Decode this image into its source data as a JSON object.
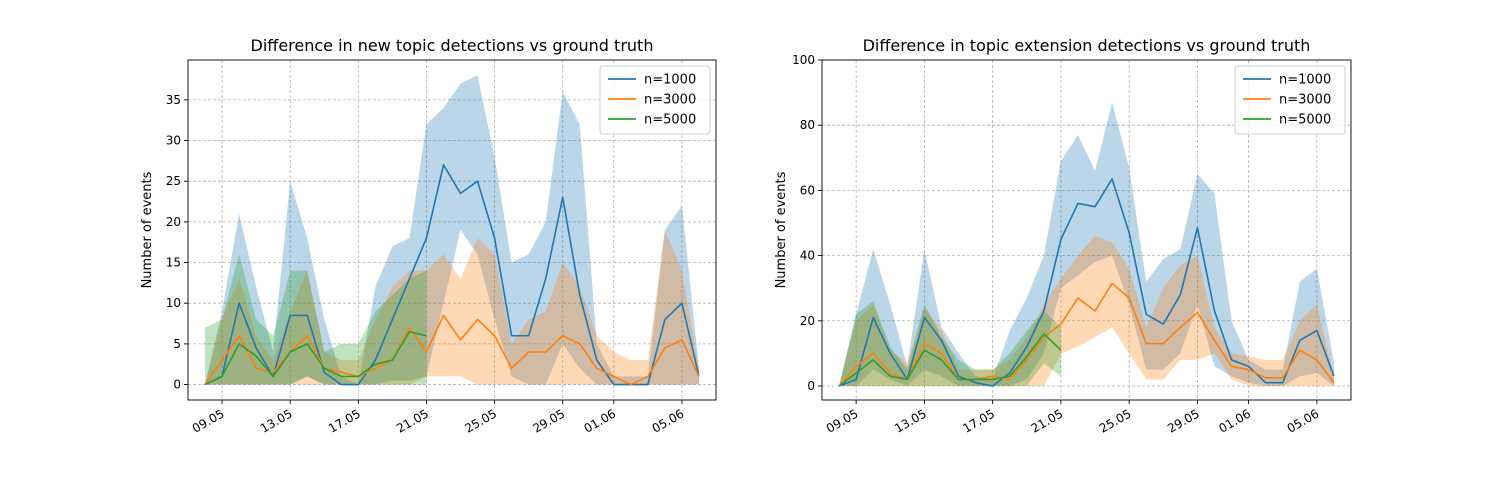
{
  "colors": {
    "n1000": "#1f77b4",
    "n3000": "#ff7f0e",
    "n5000": "#2ca02c"
  },
  "chart_data": [
    {
      "type": "line",
      "title": "Difference in new topic detections vs ground truth",
      "ylabel": "Number of events",
      "xlabel": "",
      "x_dates": [
        "2024-05-08",
        "2024-05-09",
        "2024-05-10",
        "2024-05-11",
        "2024-05-12",
        "2024-05-13",
        "2024-05-14",
        "2024-05-15",
        "2024-05-16",
        "2024-05-17",
        "2024-05-18",
        "2024-05-19",
        "2024-05-20",
        "2024-05-21",
        "2024-05-22",
        "2024-05-23",
        "2024-05-24",
        "2024-05-25",
        "2024-05-26",
        "2024-05-27",
        "2024-05-28",
        "2024-05-29",
        "2024-05-30",
        "2024-05-31",
        "2024-06-01",
        "2024-06-02",
        "2024-06-03",
        "2024-06-04",
        "2024-06-05",
        "2024-06-06"
      ],
      "xtick_labels": [
        "09.05",
        "13.05",
        "17.05",
        "21.05",
        "25.05",
        "29.05",
        "01.06",
        "05.06"
      ],
      "xtick_dates": [
        "2024-05-09",
        "2024-05-13",
        "2024-05-17",
        "2024-05-21",
        "2024-05-25",
        "2024-05-29",
        "2024-06-01",
        "2024-06-05"
      ],
      "yticks": [
        0,
        5,
        10,
        15,
        20,
        25,
        30,
        35
      ],
      "ylim": [
        -1.9,
        39.9
      ],
      "xlim": [
        "2024-05-07",
        "2024-06-07"
      ],
      "grid": true,
      "legend_position": "top-right",
      "series": [
        {
          "name": "n=1000",
          "color_key": "n1000",
          "values": [
            0,
            1,
            10,
            4.5,
            1,
            8.5,
            8.5,
            1.5,
            0,
            0,
            3,
            8,
            13,
            18,
            27,
            23.5,
            25,
            18,
            6,
            6,
            13,
            23,
            11,
            3,
            0,
            0,
            0,
            8,
            10,
            1
          ],
          "lower": [
            0,
            0,
            0,
            0,
            0,
            0,
            1,
            0,
            0,
            0,
            0,
            0.5,
            0.5,
            1,
            10,
            19,
            16,
            8,
            1,
            0,
            0,
            5,
            2,
            0,
            0,
            0,
            0,
            0,
            0,
            0
          ],
          "upper": [
            0,
            9,
            21,
            12,
            4,
            25,
            18,
            8,
            1,
            0,
            12,
            17,
            18,
            32,
            34,
            37,
            38,
            28,
            15,
            16,
            20,
            36,
            32,
            5,
            1,
            1,
            1,
            19,
            22,
            2
          ]
        },
        {
          "name": "n=3000",
          "color_key": "n3000",
          "values": [
            0,
            3,
            6,
            2,
            1.5,
            4,
            6,
            2,
            1.5,
            1,
            2,
            3,
            7,
            4,
            8.5,
            5.5,
            8,
            6,
            2,
            4,
            4,
            6,
            5,
            2,
            1,
            0,
            1,
            4.5,
            5.5,
            1
          ],
          "lower": [
            0,
            0,
            0,
            0,
            0,
            0,
            0,
            0,
            0,
            0,
            0,
            0,
            0,
            1,
            1,
            1,
            0,
            0,
            0,
            0,
            0,
            0,
            0,
            0,
            0,
            0,
            0,
            0,
            0,
            0
          ],
          "upper": [
            0,
            8,
            13,
            6,
            3,
            9,
            14,
            4,
            3,
            3,
            8,
            12,
            14,
            14,
            16,
            13,
            18,
            16,
            5,
            8,
            9,
            15,
            12,
            6,
            4,
            3,
            3,
            19,
            14,
            2
          ]
        },
        {
          "name": "n=5000",
          "color_key": "n5000",
          "values": [
            0,
            1,
            5,
            3.5,
            1,
            4,
            5,
            2,
            1,
            1,
            2.5,
            3,
            6.5,
            6
          ],
          "lower": [
            0,
            0,
            0,
            0,
            0,
            0,
            1,
            0,
            0,
            0,
            0,
            0,
            0,
            0
          ],
          "upper": [
            7,
            8,
            16,
            8,
            6,
            14,
            14,
            4,
            5,
            5,
            9,
            11,
            13,
            14
          ]
        }
      ]
    },
    {
      "type": "line",
      "title": "Difference in topic extension detections vs ground truth",
      "ylabel": "Number of events",
      "xlabel": "",
      "x_dates": [
        "2024-05-08",
        "2024-05-09",
        "2024-05-10",
        "2024-05-11",
        "2024-05-12",
        "2024-05-13",
        "2024-05-14",
        "2024-05-15",
        "2024-05-16",
        "2024-05-17",
        "2024-05-18",
        "2024-05-19",
        "2024-05-20",
        "2024-05-21",
        "2024-05-22",
        "2024-05-23",
        "2024-05-24",
        "2024-05-25",
        "2024-05-26",
        "2024-05-27",
        "2024-05-28",
        "2024-05-29",
        "2024-05-30",
        "2024-05-31",
        "2024-06-01",
        "2024-06-02",
        "2024-06-03",
        "2024-06-04",
        "2024-06-05",
        "2024-06-06"
      ],
      "xtick_labels": [
        "09.05",
        "13.05",
        "17.05",
        "21.05",
        "25.05",
        "29.05",
        "01.06",
        "05.06"
      ],
      "xtick_dates": [
        "2024-05-09",
        "2024-05-13",
        "2024-05-17",
        "2024-05-21",
        "2024-05-25",
        "2024-05-29",
        "2024-06-01",
        "2024-06-05"
      ],
      "yticks": [
        0,
        20,
        40,
        60,
        80,
        100
      ],
      "ylim": [
        -4.3,
        100
      ],
      "xlim": [
        "2024-05-07",
        "2024-06-07"
      ],
      "grid": true,
      "legend_position": "top-right",
      "series": [
        {
          "name": "n=1000",
          "color_key": "n1000",
          "values": [
            0,
            2,
            21,
            10,
            2,
            21,
            14,
            3,
            1,
            0,
            4,
            12,
            23,
            45,
            56,
            55,
            63.5,
            47,
            22,
            19,
            28,
            48.5,
            23,
            8,
            6,
            1,
            1,
            14,
            17,
            3
          ],
          "lower": [
            0,
            0,
            5,
            2,
            0,
            5,
            3,
            0,
            0,
            0,
            0,
            2,
            10,
            30,
            34,
            38,
            40,
            25,
            5,
            5,
            10,
            25,
            6,
            3,
            1,
            0,
            0,
            3,
            4,
            0
          ],
          "upper": [
            0,
            22,
            42,
            25,
            6,
            42,
            18,
            10,
            3,
            2,
            17,
            27,
            40,
            69,
            77,
            66,
            87,
            67,
            32,
            39,
            42,
            65,
            59,
            20,
            8,
            5,
            5,
            32,
            36,
            7
          ]
        },
        {
          "name": "n=3000",
          "color_key": "n3000",
          "values": [
            0,
            6,
            10,
            4,
            2,
            13,
            10,
            2,
            2,
            3,
            2,
            8,
            15,
            19,
            27,
            23,
            31.5,
            27,
            13,
            13,
            18,
            22.5,
            14,
            6,
            5,
            2.5,
            2.5,
            11,
            8,
            1
          ],
          "lower": [
            0,
            0,
            0,
            0,
            0,
            0,
            0,
            0,
            0,
            0,
            0,
            0,
            0,
            10,
            12,
            15,
            18,
            10,
            2,
            2,
            8,
            8,
            10,
            2,
            0,
            0,
            0,
            0,
            0,
            0
          ],
          "upper": [
            0,
            20,
            25,
            11,
            7,
            24,
            17,
            5,
            5,
            5,
            8,
            15,
            25,
            33,
            40,
            46,
            44,
            36,
            18,
            30,
            37,
            40,
            18,
            10,
            9,
            8,
            8,
            20,
            25,
            3
          ]
        },
        {
          "name": "n=5000",
          "color_key": "n5000",
          "values": [
            0,
            4,
            8,
            3,
            2,
            11,
            8,
            2,
            2,
            2,
            3,
            9,
            16,
            11
          ],
          "lower": [
            0,
            0,
            0,
            0,
            0,
            0,
            0,
            0,
            0,
            0,
            0,
            0,
            7,
            3
          ],
          "upper": [
            0,
            22,
            26,
            12,
            5,
            25,
            15,
            8,
            5,
            5,
            10,
            17,
            23,
            18
          ]
        }
      ]
    }
  ]
}
